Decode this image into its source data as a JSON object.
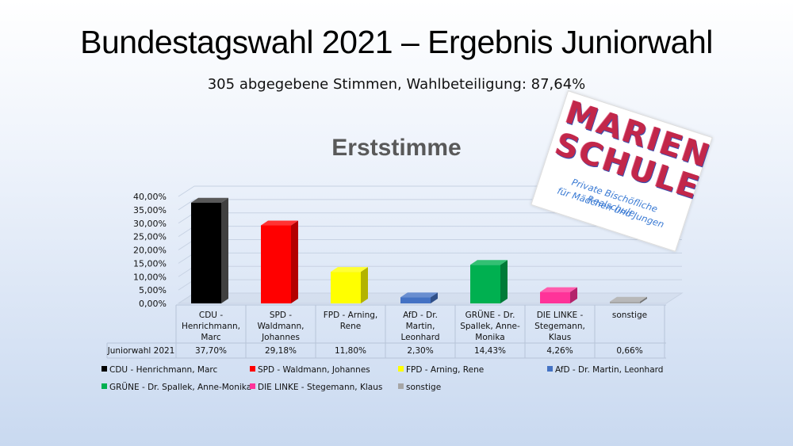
{
  "header": {
    "title": "Bundestagswahl 2021 – Ergebnis Juniorwahl",
    "subtitle": "305 abgegebene Stimmen, Wahlbeteiligung: 87,64%"
  },
  "logo": {
    "line1": "MARIEN",
    "line2": "SCHULE",
    "tagline1": "Private Bischöfliche Realschule",
    "tagline2": "für Mädchen und Jungen"
  },
  "chart_data": {
    "type": "bar",
    "title": "Erststimme",
    "xlabel": "",
    "ylabel": "",
    "ylim": [
      0,
      40
    ],
    "yticks": [
      "0,00%",
      "5,00%",
      "10,00%",
      "15,00%",
      "20,00%",
      "25,00%",
      "30,00%",
      "35,00%",
      "40,00%"
    ],
    "grid": true,
    "legend_position": "bottom",
    "table_row_label": "Juniorwahl 2021",
    "categories": [
      {
        "label": [
          "CDU -",
          "Henrichmann,",
          "Marc"
        ],
        "legend": "CDU - Henrichmann, Marc",
        "value": 37.7,
        "value_label": "37,70%",
        "color": "#000000"
      },
      {
        "label": [
          "SPD -",
          "Waldmann,",
          "Johannes"
        ],
        "legend": "SPD - Waldmann, Johannes",
        "value": 29.18,
        "value_label": "29,18%",
        "color": "#ff0000"
      },
      {
        "label": [
          "FPD - Arning,",
          "Rene"
        ],
        "legend": "FPD - Arning, Rene",
        "value": 11.8,
        "value_label": "11,80%",
        "color": "#ffff00"
      },
      {
        "label": [
          "AfD - Dr.",
          "Martin,",
          "Leonhard"
        ],
        "legend": "AfD - Dr. Martin, Leonhard",
        "value": 2.3,
        "value_label": "2,30%",
        "color": "#4472c4"
      },
      {
        "label": [
          "GRÜNE - Dr.",
          "Spallek, Anne-",
          "Monika"
        ],
        "legend": "GRÜNE - Dr. Spallek, Anne-Monika",
        "value": 14.43,
        "value_label": "14,43%",
        "color": "#00b050"
      },
      {
        "label": [
          "DIE LINKE -",
          "Stegemann,",
          "Klaus"
        ],
        "legend": "DIE LINKE - Stegemann, Klaus",
        "value": 4.26,
        "value_label": "4,26%",
        "color": "#ff3399"
      },
      {
        "label": [
          "sonstige"
        ],
        "legend": "sonstige",
        "value": 0.66,
        "value_label": "0,66%",
        "color": "#a6a6a6"
      }
    ]
  }
}
